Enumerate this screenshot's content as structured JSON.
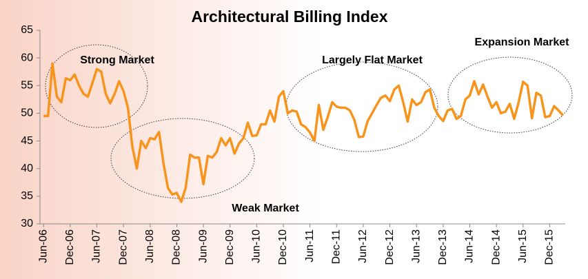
{
  "chart_data": {
    "type": "line",
    "title": "Architectural Billing Index",
    "categories": [
      "Jun-06",
      null,
      null,
      null,
      null,
      null,
      "Dec-06",
      null,
      null,
      null,
      null,
      null,
      "Jun-07",
      null,
      null,
      null,
      null,
      null,
      "Dec-07",
      null,
      null,
      null,
      null,
      null,
      "Jun-08",
      null,
      null,
      null,
      null,
      null,
      "Dec-08",
      null,
      null,
      null,
      null,
      null,
      "Jun-09",
      null,
      null,
      null,
      null,
      null,
      "Dec-09",
      null,
      null,
      null,
      null,
      null,
      "Jun-10",
      null,
      null,
      null,
      null,
      null,
      "Dec-10",
      null,
      null,
      null,
      null,
      null,
      "Jun-11",
      null,
      null,
      null,
      null,
      null,
      "Dec-11",
      null,
      null,
      null,
      null,
      null,
      "Jun-12",
      null,
      null,
      null,
      null,
      null,
      "Dec-12",
      null,
      null,
      null,
      null,
      null,
      "Jun-13",
      null,
      null,
      null,
      null,
      null,
      "Dec-13",
      null,
      null,
      null,
      null,
      null,
      "Jun-14",
      null,
      null,
      null,
      null,
      null,
      "Dec-14",
      null,
      null,
      null,
      null,
      null,
      "Jun-15",
      null,
      null,
      null,
      null,
      null,
      "Dec-15",
      null,
      null,
      null
    ],
    "values": [
      49.5,
      49.5,
      59,
      53,
      52,
      56.3,
      56,
      57,
      55,
      53.5,
      53,
      55.5,
      58,
      57.5,
      53.5,
      51.8,
      53.5,
      55.8,
      54,
      51,
      44,
      40,
      45,
      43.7,
      45.5,
      45.3,
      46.6,
      41,
      36.5,
      35.3,
      35.6,
      34,
      36.5,
      42.5,
      42,
      42,
      37.2,
      42.3,
      42,
      43,
      45.5,
      44.2,
      45.5,
      42.7,
      44.5,
      45.5,
      48.3,
      45.9,
      46,
      48,
      48,
      50.5,
      48.5,
      53,
      54,
      50,
      50.5,
      50.3,
      48,
      47.5,
      46.5,
      45,
      51.5,
      47,
      49.3,
      52,
      51.2,
      51,
      51,
      50.5,
      48.8,
      45.7,
      45.8,
      48.6,
      50,
      51.5,
      52.8,
      53.2,
      52.2,
      54.3,
      55,
      52,
      48.5,
      52.5,
      51.5,
      52,
      53.8,
      54.3,
      51,
      49.5,
      48.6,
      50.5,
      50.8,
      49,
      49.5,
      52.5,
      53.2,
      55.8,
      53.4,
      55.2,
      53,
      51,
      52,
      50,
      50.3,
      51.7,
      49,
      52,
      55.7,
      55,
      49.1,
      53.7,
      53.2,
      49.3,
      49.5,
      51.3,
      50.5,
      49.6
    ],
    "color": "#f7941d",
    "ylim": [
      30,
      65
    ],
    "yticks": [
      30,
      35,
      40,
      45,
      50,
      55,
      60,
      65
    ],
    "annotations": [
      "Strong Market",
      "Weak Market",
      "Largely Flat Market",
      "Expansion Market"
    ]
  }
}
